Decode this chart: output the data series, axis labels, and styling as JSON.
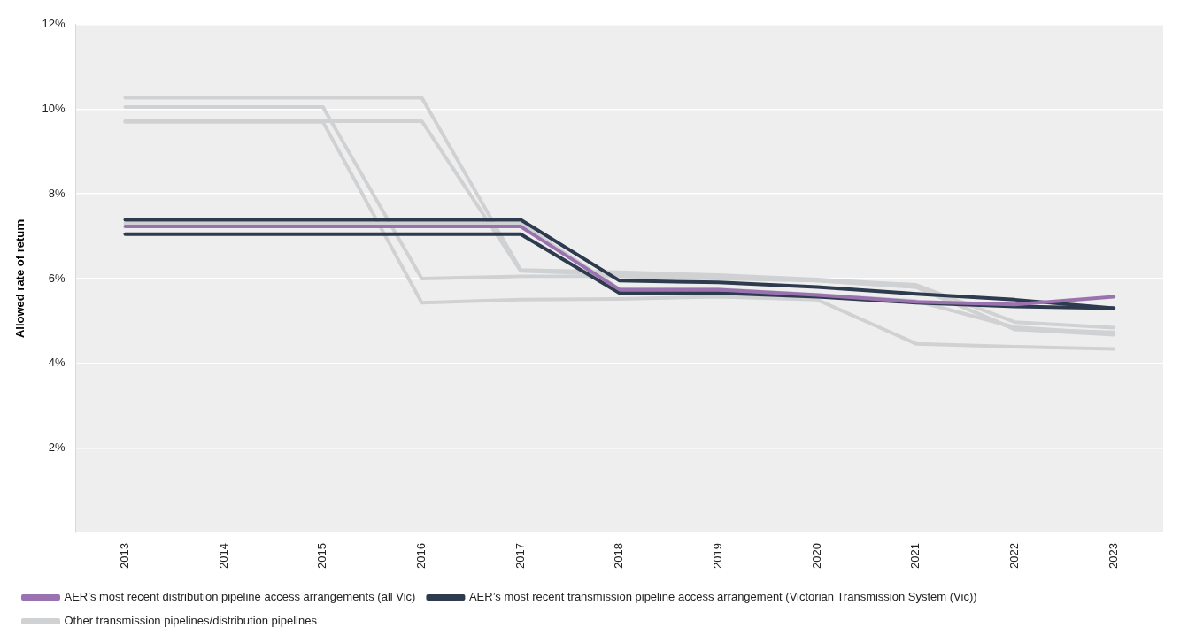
{
  "chart_data": {
    "type": "line",
    "ylabel": "Allowed rate of return",
    "categories": [
      "2013",
      "2014",
      "2015",
      "2016",
      "2017",
      "2018",
      "2019",
      "2020",
      "2021",
      "2022",
      "2023"
    ],
    "series": [
      {
        "name": "AER’s most recent distribution pipeline access arrangements (all Vic)",
        "color": "#9b72b0",
        "values": [
          7.23,
          7.23,
          7.23,
          7.23,
          7.23,
          5.74,
          5.74,
          5.61,
          5.45,
          5.39,
          5.57
        ]
      },
      {
        "name": "AER’s most recent transmission pipeline access arrangement (Victorian Transmission System (Vic))",
        "color": "#2e3b4e",
        "values": [
          7.39,
          7.39,
          7.39,
          7.39,
          7.39,
          5.95,
          5.91,
          5.8,
          5.64,
          5.5,
          5.3
        ]
      },
      {
        "color": "#2e3b4e",
        "values": [
          7.05,
          7.05,
          7.05,
          7.05,
          7.05,
          5.66,
          5.66,
          5.57,
          5.43,
          5.34,
          5.3
        ]
      },
      {
        "name": "Other transmission pipelines/distribution pipelines",
        "color": "#d0d1d3",
        "values": [
          10.27,
          10.27,
          10.27,
          10.27,
          6.2,
          6.15,
          6.08,
          5.98,
          5.85,
          4.97,
          4.84
        ]
      },
      {
        "color": "#d0d1d3",
        "values": [
          10.05,
          10.05,
          10.05,
          6.0,
          6.05,
          6.05,
          6.0,
          5.95,
          5.8,
          4.8,
          4.73
        ]
      },
      {
        "color": "#d0d1d3",
        "values": [
          9.72,
          9.72,
          9.72,
          9.72,
          6.18,
          6.1,
          6.05,
          5.95,
          5.8,
          4.8,
          4.67
        ]
      },
      {
        "color": "#d0d1d3",
        "values": [
          9.7,
          9.7,
          9.7,
          5.43,
          5.5,
          5.52,
          5.57,
          5.5,
          4.46,
          4.39,
          4.34
        ]
      },
      {
        "color": "#d0d1d3",
        "values": [
          7.3,
          7.3,
          7.3,
          7.3,
          7.3,
          5.75,
          5.75,
          5.62,
          5.47,
          4.85,
          4.7
        ]
      }
    ],
    "ylim": [
      0,
      12
    ],
    "yticks": [
      {
        "value": 0,
        "label": null
      },
      {
        "value": 2,
        "label": "2%"
      },
      {
        "value": 4,
        "label": "4%"
      },
      {
        "value": 6,
        "label": "6%"
      },
      {
        "value": 8,
        "label": "8%"
      },
      {
        "value": 10,
        "label": "10%"
      },
      {
        "value": 12,
        "label": "12%"
      }
    ],
    "grid": "y",
    "legend": "bottom",
    "marker": "none",
    "line_style": "solid"
  }
}
